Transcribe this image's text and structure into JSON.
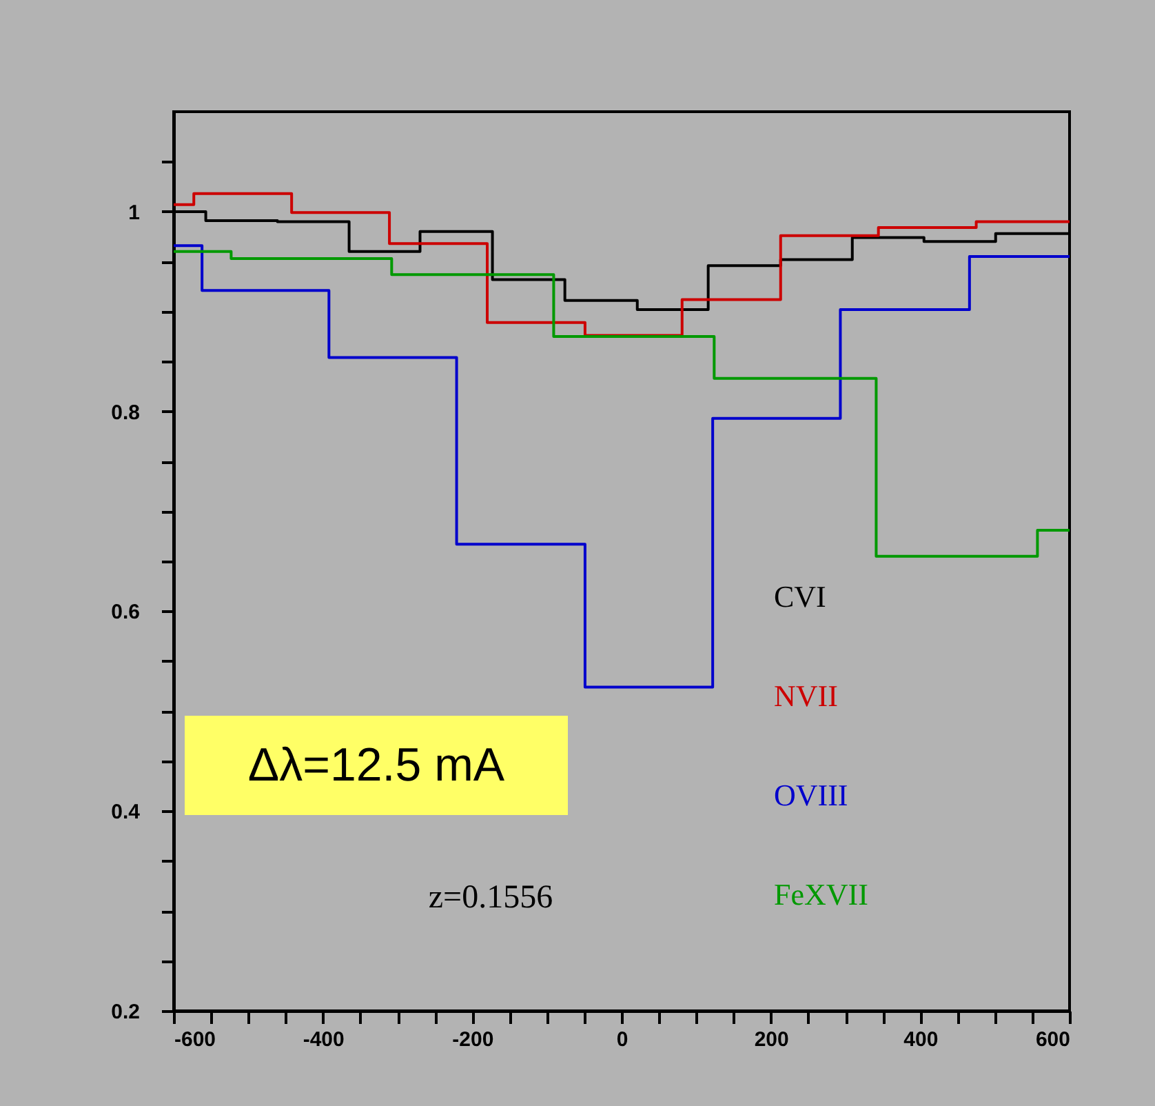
{
  "chart_data": {
    "type": "step",
    "xlim": [
      -600,
      600
    ],
    "ylim": [
      0.2,
      1.1
    ],
    "xticks": [
      -600,
      {
        "value": -550,
        "label": null
      },
      {
        "value": -500,
        "label": null
      },
      {
        "value": -450,
        "label": null
      },
      -400,
      {
        "value": -350,
        "label": null
      },
      {
        "value": -300,
        "label": null
      },
      {
        "value": -250,
        "label": null
      },
      -200,
      {
        "value": -150,
        "label": null
      },
      {
        "value": -100,
        "label": null
      },
      {
        "value": -50,
        "label": null
      },
      0,
      {
        "value": 50,
        "label": null
      },
      {
        "value": 100,
        "label": null
      },
      {
        "value": 150,
        "label": null
      },
      200,
      {
        "value": 250,
        "label": null
      },
      {
        "value": 300,
        "label": null
      },
      {
        "value": 350,
        "label": null
      },
      400,
      {
        "value": 450,
        "label": null
      },
      {
        "value": 500,
        "label": null
      },
      {
        "value": 550,
        "label": null
      },
      600
    ],
    "yticks": [
      0.2,
      {
        "value": 0.25,
        "label": null
      },
      {
        "value": 0.3,
        "label": null
      },
      {
        "value": 0.35,
        "label": null
      },
      0.4,
      {
        "value": 0.45,
        "label": null
      },
      {
        "value": 0.5,
        "label": null
      },
      {
        "value": 0.55,
        "label": null
      },
      0.6,
      {
        "value": 0.65,
        "label": null
      },
      {
        "value": 0.7,
        "label": null
      },
      {
        "value": 0.75,
        "label": null
      },
      0.8,
      {
        "value": 0.85,
        "label": null
      },
      {
        "value": 0.9,
        "label": null
      },
      {
        "value": 0.95,
        "label": null
      },
      1,
      {
        "value": 1.05,
        "label": null
      }
    ],
    "legend": "bottom right",
    "grid": false,
    "series": [
      {
        "name": "CVI",
        "color": "#000000",
        "x": [
          -600,
          -557,
          -461,
          -365,
          -270,
          -173,
          -76,
          21,
          116,
          213,
          309,
          405,
          501,
          600
        ],
        "values": [
          1.0,
          0.991,
          0.99,
          0.96,
          0.98,
          0.932,
          0.911,
          0.902,
          0.946,
          0.952,
          0.974,
          0.97,
          0.978,
          0.978
        ]
      },
      {
        "name": "NVII",
        "color": "#cc0000",
        "x": [
          -600,
          -573,
          -442,
          -311,
          -180,
          -49,
          81,
          213,
          344,
          475,
          600
        ],
        "values": [
          1.007,
          1.018,
          0.999,
          0.968,
          0.889,
          0.876,
          0.912,
          0.976,
          0.984,
          0.99,
          0.99
        ]
      },
      {
        "name": "OVIII",
        "color": "#0000cc",
        "x": [
          -600,
          -562,
          -392,
          -221,
          -49,
          122,
          293,
          466,
          600
        ],
        "values": [
          0.966,
          0.921,
          0.854,
          0.667,
          0.524,
          0.793,
          0.902,
          0.955,
          0.955
        ]
      },
      {
        "name": "FeXVII",
        "color": "#009900",
        "x": [
          -600,
          -523,
          -308,
          -91,
          124,
          341,
          557,
          600
        ],
        "values": [
          0.96,
          0.953,
          0.937,
          0.875,
          0.833,
          0.655,
          0.681,
          0.681
        ]
      }
    ],
    "annotations": [
      "Δλ=12.5 mA",
      "z=0.1556"
    ]
  }
}
